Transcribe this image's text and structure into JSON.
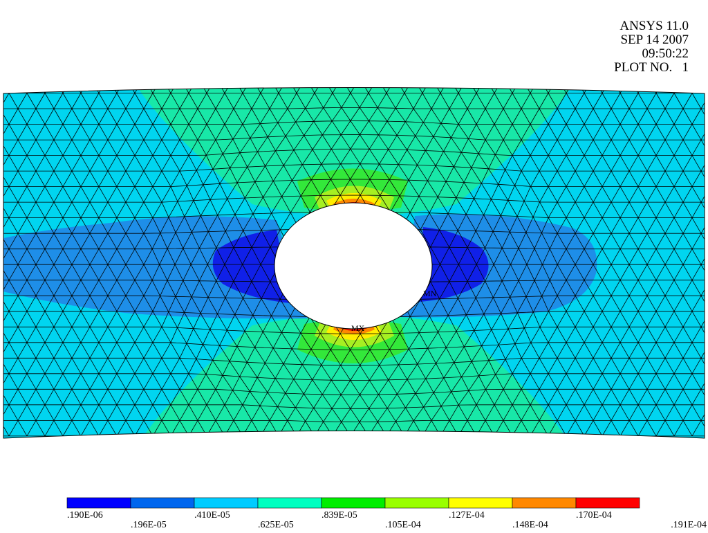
{
  "header": {
    "version": "ANSYS 11.0",
    "date": "SEP 14 2007",
    "time": "09:50:22",
    "plot_no": "PLOT NO.   1"
  },
  "markers": {
    "max_label": "MX",
    "min_label": "MN"
  },
  "legend": {
    "colors": [
      "#0000ff",
      "#0066ee",
      "#00ccff",
      "#00ffc0",
      "#00ee00",
      "#99ff00",
      "#ffff00",
      "#ff8800",
      "#ff0000"
    ],
    "labels": [
      ".190E-06",
      ".196E-05",
      ".410E-05",
      ".625E-05",
      ".839E-05",
      ".105E-04",
      ".127E-04",
      ".148E-04",
      ".170E-04",
      ".191E-04"
    ]
  },
  "plot_colors": {
    "base": "#00d5f0",
    "tension_outer": "#18e8a8",
    "tension_mid": "#33e83a",
    "tension_inner": "#a6ef22",
    "tension_peak_a": "#ffee00",
    "tension_peak_b": "#ff8800",
    "tension_peak_c": "#ee1100",
    "low_outer": "#1e8ee8",
    "low_inner": "#1020e8",
    "mesh": "#000000"
  }
}
